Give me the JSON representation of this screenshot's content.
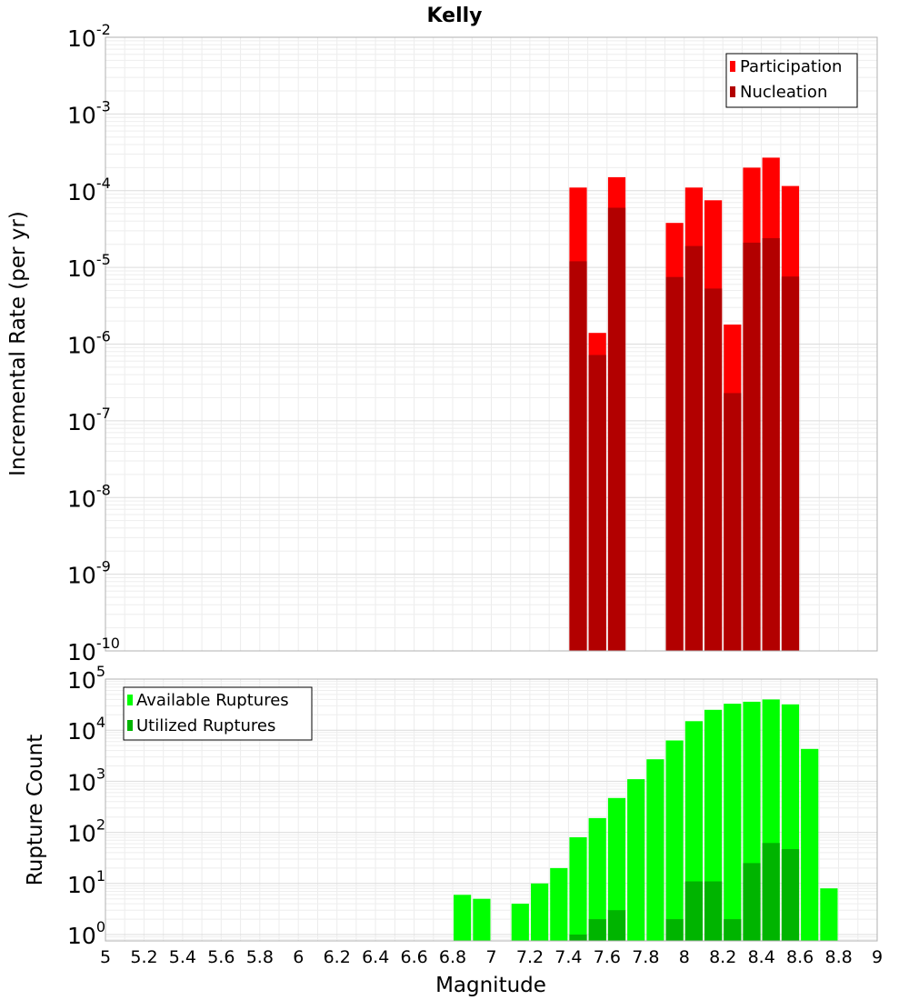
{
  "chart_data": [
    {
      "type": "bar",
      "title": "Kelly",
      "xlabel": "Magnitude",
      "ylabel": "Incremental Rate (per yr)",
      "yscale": "log",
      "ylim": [
        1e-10,
        0.01
      ],
      "xlim": [
        5,
        9
      ],
      "x": [
        7.45,
        7.55,
        7.65,
        7.95,
        8.05,
        8.15,
        8.25,
        8.35,
        8.45,
        8.55
      ],
      "series": [
        {
          "name": "Participation",
          "color": "#ff0000",
          "values": [
            0.00011,
            1.4e-06,
            0.00015,
            3.8e-05,
            0.00011,
            7.5e-05,
            1.8e-06,
            0.0002,
            0.00027,
            0.000115
          ]
        },
        {
          "name": "Nucleation",
          "color": "#b20000",
          "values": [
            1.2e-05,
            7.2e-07,
            6e-05,
            7.5e-06,
            1.9e-05,
            5.3e-06,
            2.3e-07,
            2.1e-05,
            2.4e-05,
            7.6e-06
          ]
        }
      ],
      "legend_position": "top-right",
      "grid": true
    },
    {
      "type": "bar",
      "xlabel": "Magnitude",
      "ylabel": "Rupture Count",
      "yscale": "log",
      "ylim": [
        0.75,
        100000
      ],
      "xlim": [
        5,
        9
      ],
      "x_ticks": [
        "5",
        "5.2",
        "5.4",
        "5.6",
        "5.8",
        "6",
        "6.2",
        "6.4",
        "6.6",
        "6.8",
        "7",
        "7.2",
        "7.4",
        "7.6",
        "7.8",
        "8",
        "8.2",
        "8.4",
        "8.6",
        "8.8",
        "9"
      ],
      "series": [
        {
          "name": "Available Ruptures",
          "color": "#00ff00",
          "x": [
            6.85,
            6.95,
            7.15,
            7.25,
            7.35,
            7.45,
            7.55,
            7.65,
            7.75,
            7.85,
            7.95,
            8.05,
            8.15,
            8.25,
            8.35,
            8.45,
            8.55,
            8.65,
            8.75
          ],
          "values": [
            6,
            5,
            4,
            10,
            20,
            80,
            190,
            470,
            1100,
            2700,
            6300,
            15000,
            25000,
            33000,
            36000,
            40000,
            32000,
            4300,
            8
          ]
        },
        {
          "name": "Utilized Ruptures",
          "color": "#00b400",
          "x": [
            7.45,
            7.55,
            7.65,
            7.95,
            8.05,
            8.15,
            8.25,
            8.35,
            8.45,
            8.55
          ],
          "values": [
            1,
            2,
            3,
            2,
            11,
            11,
            2,
            25,
            62,
            47
          ]
        }
      ],
      "legend_position": "top-left",
      "grid": true
    }
  ]
}
